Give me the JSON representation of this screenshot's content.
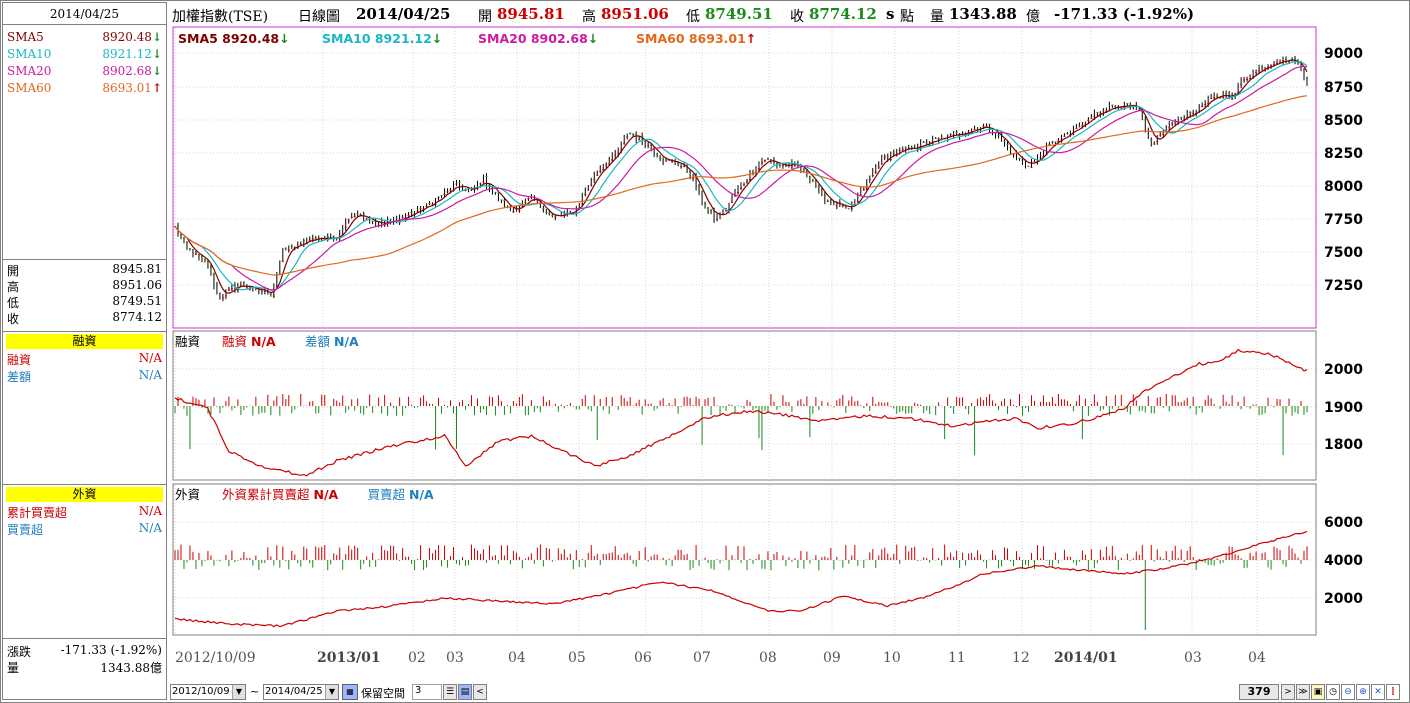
{
  "header": {
    "date_box": "2014/04/25",
    "index_name": "加權指數(TSE)",
    "period": "日線圖",
    "date": "2014/04/25",
    "open_label": "開",
    "open_value": "8945.81",
    "high_label": "高",
    "high_value": "8951.06",
    "low_label": "低",
    "low_value": "8749.51",
    "close_label": "收",
    "close_value": "8774.12",
    "unit_s": "s",
    "points_label": "點",
    "volume_label": "量",
    "volume_value": "1343.88",
    "volume_unit": "億",
    "change": "-171.33 (-1.92%)"
  },
  "colors": {
    "sma5": "#7f0000",
    "sma10": "#19b7c4",
    "sma20": "#cc1aa3",
    "sma60": "#e2681c",
    "up": "#cc0000",
    "down": "#1a8a1a",
    "blue": "#1f5fbf",
    "yellow": "#ffff00"
  },
  "left_panel": {
    "sma": [
      {
        "name": "SMA5",
        "value": "8920.48",
        "arrow": "down",
        "color": "#7f0000"
      },
      {
        "name": "SMA10",
        "value": "8921.12",
        "arrow": "down",
        "color": "#19b7c4"
      },
      {
        "name": "SMA20",
        "value": "8902.68",
        "arrow": "down",
        "color": "#cc1aa3"
      },
      {
        "name": "SMA60",
        "value": "8693.01",
        "arrow": "up",
        "color": "#e2681c"
      }
    ],
    "ohlc": [
      {
        "label": "開",
        "value": "8945.81"
      },
      {
        "label": "高",
        "value": "8951.06"
      },
      {
        "label": "低",
        "value": "8749.51"
      },
      {
        "label": "收",
        "value": "8774.12"
      }
    ],
    "margin": {
      "title": "融資",
      "rows": [
        {
          "label": "融資",
          "value": "N/A",
          "color": "#cc0000"
        },
        {
          "label": "差額",
          "value": "N/A",
          "color": "#1f7fbf"
        }
      ]
    },
    "foreign": {
      "title": "外資",
      "rows": [
        {
          "label": "累計買賣超",
          "value": "N/A",
          "color": "#cc0000"
        },
        {
          "label": "買賣超",
          "value": "N/A",
          "color": "#1f7fbf"
        }
      ]
    },
    "change_label": "漲跌",
    "change_value": "-171.33 (-1.92%)",
    "volume_label": "量",
    "volume_value": "1343.88億"
  },
  "price_chart": {
    "legend": [
      {
        "text": "SMA5 8920.48",
        "arrow": "down",
        "color": "#7f0000"
      },
      {
        "text": "SMA10 8921.12",
        "arrow": "down",
        "color": "#19b7c4"
      },
      {
        "text": "SMA20 8902.68",
        "arrow": "down",
        "color": "#cc1aa3"
      },
      {
        "text": "SMA60 8693.01",
        "arrow": "up",
        "color": "#e2681c"
      }
    ],
    "y_ticks": [
      "9000",
      "8750",
      "8500",
      "8250",
      "8000",
      "7750",
      "7500",
      "7250"
    ]
  },
  "margin_chart": {
    "title": "融資",
    "legend": [
      {
        "label": "融資",
        "value": "N/A",
        "color": "#cc0000"
      },
      {
        "label": "差額",
        "value": "N/A",
        "color": "#1f7fbf"
      }
    ],
    "y_ticks": [
      "2000",
      "1900",
      "1800"
    ]
  },
  "foreign_chart": {
    "title": "外資",
    "legend": [
      {
        "label": "外資累計買賣超",
        "value": "N/A",
        "color": "#cc0000"
      },
      {
        "label": "買賣超",
        "value": "N/A",
        "color": "#1f7fbf"
      }
    ],
    "y_ticks": [
      "6000",
      "4000",
      "2000"
    ]
  },
  "x_axis": [
    "2012/10/09",
    "2013/01",
    "02",
    "03",
    "04",
    "05",
    "06",
    "07",
    "08",
    "09",
    "10",
    "11",
    "12",
    "2014/01",
    "03",
    "04"
  ],
  "toolbar": {
    "start_date": "2012/10/09",
    "tilde": "~",
    "end_date": "2014/04/25",
    "reserve_label": "保留空間",
    "reserve_value": "3",
    "count": "379"
  }
}
